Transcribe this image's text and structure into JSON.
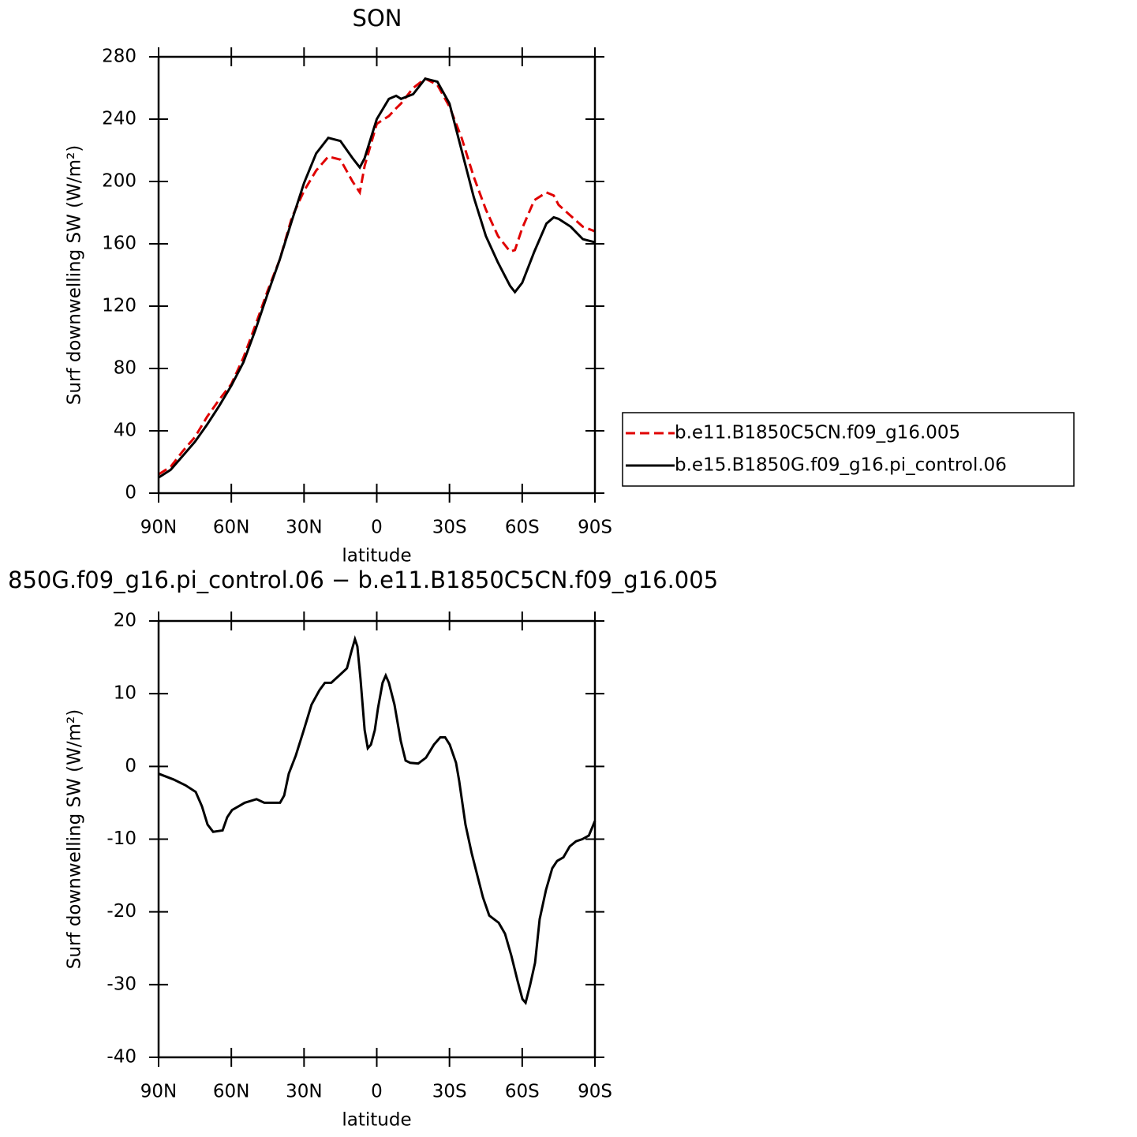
{
  "chart_data": [
    {
      "type": "line",
      "title": "SON",
      "x_label": "latitude",
      "y_label": "Surf downwelling SW (W/m²)",
      "x": [
        90,
        85,
        80,
        75,
        70,
        65,
        60,
        55,
        50,
        45,
        40,
        35,
        30,
        25,
        20,
        15,
        10,
        7,
        5,
        0,
        -5,
        -8,
        -10,
        -15,
        -20,
        -25,
        -30,
        -35,
        -40,
        -45,
        -50,
        -55,
        -57,
        -60,
        -65,
        -70,
        -73,
        -75,
        -80,
        -85,
        -90
      ],
      "series": [
        {
          "name": "b.e11.B1850C5CN.f09_g16.005",
          "color": "#e00000",
          "dash": "dashed",
          "values": [
            12,
            17,
            27,
            36,
            49,
            60,
            70,
            87,
            108,
            130,
            150,
            177,
            194,
            207,
            216,
            214,
            200,
            193,
            210,
            237,
            242,
            247,
            250,
            260,
            266,
            262,
            248,
            228,
            203,
            182,
            165,
            155,
            156,
            170,
            188,
            193,
            191,
            185,
            178,
            171,
            168
          ]
        },
        {
          "name": "b.e15.B1850G.f09_g16.pi_control.06",
          "color": "#000000",
          "dash": "solid",
          "values": [
            10,
            15,
            24,
            33,
            44,
            56,
            69,
            84,
            105,
            128,
            150,
            175,
            199,
            218,
            228,
            226,
            215,
            209,
            215,
            240,
            253,
            255,
            253,
            256,
            266,
            264,
            250,
            220,
            190,
            165,
            148,
            133,
            129,
            135,
            155,
            173,
            177,
            176,
            171,
            163,
            161
          ]
        }
      ],
      "xlim": [
        90,
        -90
      ],
      "xticks": [
        {
          "value": 90,
          "label": "90N"
        },
        {
          "value": 60,
          "label": "60N"
        },
        {
          "value": 30,
          "label": "30N"
        },
        0,
        {
          "value": -30,
          "label": "30S"
        },
        {
          "value": -60,
          "label": "60S"
        },
        {
          "value": -90,
          "label": "90S"
        }
      ],
      "ylim": [
        0,
        280
      ],
      "yticks": [
        0,
        40,
        80,
        120,
        160,
        200,
        240,
        280
      ],
      "legend": "right"
    },
    {
      "type": "line",
      "title": "850G.f09_g16.pi_control.06 − b.e11.B1850C5CN.f09_g16.005",
      "x_label": "latitude",
      "y_label": "Surf downwelling SW (W/m²)",
      "x": [
        90,
        83.8,
        78.9,
        74.7,
        72.1,
        69.8,
        67.5,
        63.6,
        61.7,
        59.7,
        57.1,
        54.5,
        49.6,
        46.4,
        43.1,
        39.9,
        38.2,
        36.3,
        33.4,
        30.1,
        26.9,
        23.6,
        21.4,
        18.8,
        15.5,
        12.3,
        10.3,
        9.0,
        8.0,
        6.7,
        5.0,
        3.7,
        2.4,
        0.8,
        -0.5,
        -2.4,
        -3.7,
        -5.0,
        -7.3,
        -9.9,
        -11.9,
        -13.8,
        -17.1,
        -20.3,
        -23.6,
        -26.2,
        -28.2,
        -30.1,
        -32.7,
        -34.0,
        -36.6,
        -39.2,
        -41.5,
        -43.8,
        -46.4,
        -50.3,
        -52.9,
        -55.5,
        -58.1,
        -60.1,
        -61.4,
        -63.3,
        -65.3,
        -67.2,
        -69.8,
        -72.4,
        -74.4,
        -77.0,
        -79.6,
        -82.2,
        -84.8,
        -87.5,
        -90
      ],
      "series": [
        {
          "color": "#000000",
          "dash": "solid",
          "values": [
            -1,
            -1.8,
            -2.6,
            -3.5,
            -5.5,
            -8,
            -9,
            -8.8,
            -7,
            -6,
            -5.5,
            -5,
            -4.5,
            -5,
            -5,
            -5,
            -4,
            -1,
            1.5,
            5,
            8.5,
            10.5,
            11.5,
            11.5,
            12.5,
            13.5,
            16,
            17.5,
            16.5,
            12,
            5,
            2.5,
            3,
            5,
            8,
            11.5,
            12.5,
            11.5,
            8.5,
            3.5,
            0.8,
            0.5,
            0.4,
            1.2,
            3,
            4,
            4,
            3,
            0.5,
            -2,
            -8,
            -12,
            -15,
            -18,
            -20.5,
            -21.5,
            -23,
            -26,
            -29.5,
            -32,
            -32.5,
            -30,
            -27,
            -21,
            -17,
            -14,
            -13,
            -12.5,
            -11,
            -10.3,
            -10,
            -9.5,
            -7.5
          ]
        }
      ],
      "xlim": [
        90,
        -90
      ],
      "xticks": [
        {
          "value": 90,
          "label": "90N"
        },
        {
          "value": 60,
          "label": "60N"
        },
        {
          "value": 30,
          "label": "30N"
        },
        0,
        {
          "value": -30,
          "label": "30S"
        },
        {
          "value": -60,
          "label": "60S"
        },
        {
          "value": -90,
          "label": "90S"
        }
      ],
      "ylim": [
        -40,
        20
      ],
      "yticks": [
        -40,
        -30,
        -20,
        -10,
        0,
        10,
        20
      ]
    }
  ]
}
